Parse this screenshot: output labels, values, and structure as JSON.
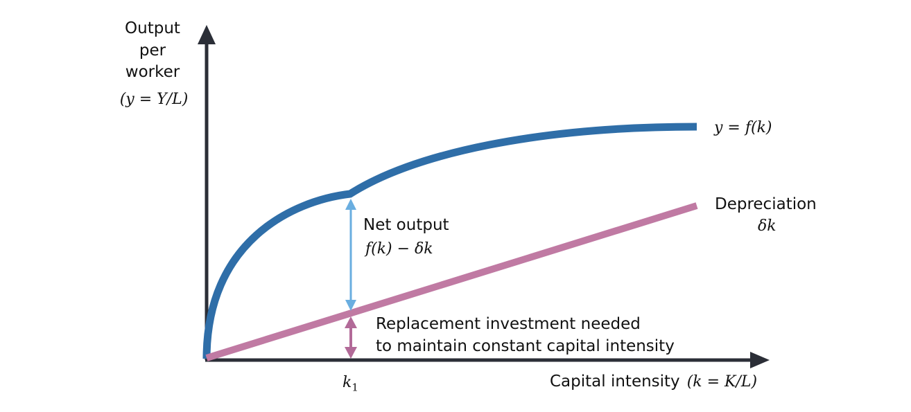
{
  "colors": {
    "axis": "#2b2e37",
    "production_curve": "#2f6ea8",
    "depreciation_line": "#c07aa3",
    "net_output_arrow": "#6aaee0",
    "replacement_arrow": "#b26a98"
  },
  "y_axis": {
    "title_lines": [
      "Output",
      "per",
      "worker"
    ],
    "title_math": "(y = Y/L)"
  },
  "x_axis": {
    "title_text": "Capital intensity",
    "title_math": "(k = K/L)",
    "tick_label": "k",
    "tick_subscript": "1"
  },
  "curves": {
    "production_label": "y = f(k)",
    "depreciation_label": "Depreciation",
    "depreciation_math": "δk"
  },
  "annotations": {
    "net_output_label": "Net output",
    "net_output_math": "f(k) − δk",
    "replacement_line1": "Replacement investment needed",
    "replacement_line2": "to maintain constant capital intensity"
  }
}
